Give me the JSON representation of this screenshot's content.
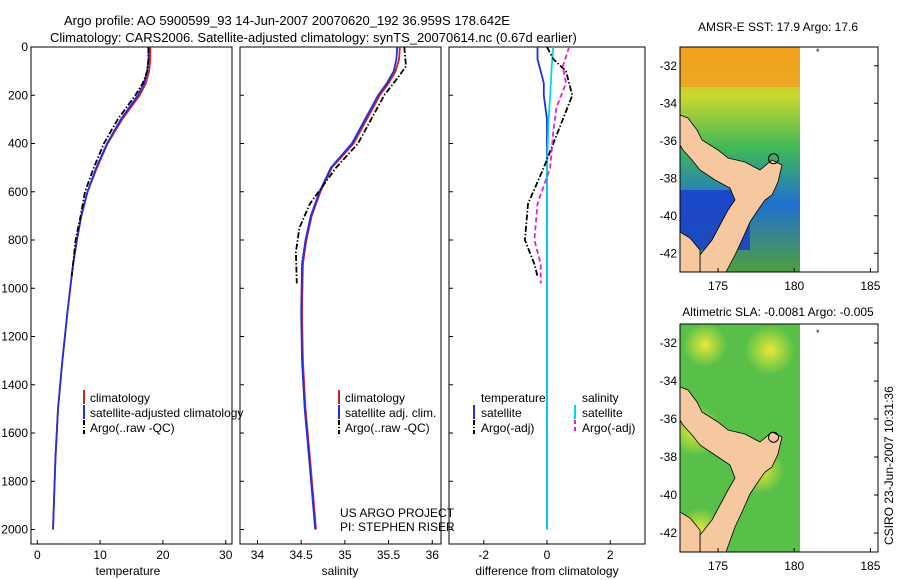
{
  "title_line1": "Argo profile: AO 5900599_93 14-Jun-2007 20070620_192 36.959S 178.642E",
  "title_line2": "Climatology: CARS2006. Satellite-adjusted climatology: synTS_20070614.nc (0.67d earlier)",
  "side_stamp": "CSIRO 23-Jun-2007 10:31:36",
  "colors": {
    "climatology": "#d02020",
    "satellite": "#2030e0",
    "argo": "#000000",
    "sal_satellite": "#00d8e8",
    "sal_argo": "#e020d0",
    "land": "#f5c8a0"
  },
  "chart_data": [
    {
      "type": "line",
      "xlabel": "temperature",
      "xlim": [
        -1,
        31
      ],
      "ylim": [
        2060,
        0
      ],
      "xticks": [
        0,
        10,
        20,
        30
      ],
      "yticks": [
        0,
        200,
        400,
        600,
        800,
        1000,
        1200,
        1400,
        1600,
        1800,
        2000
      ],
      "legend": [
        "climatology",
        "satellite-adjusted climatology",
        "Argo(..raw -QC)"
      ],
      "series": [
        {
          "name": "climatology",
          "color": "#d02020",
          "style": "solid",
          "x": [
            18,
            18,
            17.8,
            17.3,
            16.3,
            13.5,
            11.2,
            9.5,
            8,
            7,
            6.3,
            5.7,
            4.8,
            4,
            3.3,
            2.9,
            2.5
          ],
          "y": [
            0,
            50,
            100,
            150,
            200,
            300,
            400,
            500,
            600,
            700,
            800,
            900,
            1100,
            1300,
            1500,
            1700,
            2000
          ]
        },
        {
          "name": "satellite-adjusted climatology",
          "color": "#2030e0",
          "style": "solid",
          "x": [
            17.7,
            17.7,
            17.5,
            17,
            16,
            13.3,
            11.1,
            9.4,
            8,
            7,
            6.3,
            5.7,
            4.8,
            4,
            3.3,
            2.9,
            2.5
          ],
          "y": [
            0,
            50,
            100,
            150,
            200,
            300,
            400,
            500,
            600,
            700,
            800,
            900,
            1100,
            1300,
            1500,
            1700,
            2000
          ]
        },
        {
          "name": "Argo(..raw -QC)",
          "color": "#000000",
          "style": "dashdot",
          "x": [
            17.7,
            17.7,
            17.5,
            16.8,
            15.6,
            12.8,
            10.6,
            9,
            7.6,
            6.9,
            6.1,
            5.5
          ],
          "y": [
            0,
            50,
            100,
            150,
            200,
            300,
            400,
            500,
            600,
            700,
            800,
            950
          ]
        }
      ]
    },
    {
      "type": "line",
      "xlabel": "salinity",
      "xlim": [
        33.8,
        36.1
      ],
      "ylim": [
        2060,
        0
      ],
      "xticks": [
        34,
        34.5,
        35,
        35.5,
        36
      ],
      "legend": [
        "climatology",
        "satellite adj. clim.",
        "Argo(..raw -QC)"
      ],
      "annotation": [
        "US ARGO PROJECT",
        "PI: STEPHEN RISER"
      ],
      "series": [
        {
          "name": "climatology",
          "color": "#d02020",
          "style": "solid",
          "x": [
            35.63,
            35.62,
            35.58,
            35.5,
            35.4,
            35.25,
            35.1,
            34.85,
            34.72,
            34.62,
            34.56,
            34.52,
            34.51,
            34.52,
            34.55,
            34.6,
            34.67
          ],
          "y": [
            0,
            50,
            100,
            150,
            200,
            300,
            400,
            500,
            600,
            700,
            800,
            900,
            1100,
            1300,
            1500,
            1700,
            2000
          ]
        },
        {
          "name": "satellite adj. clim.",
          "color": "#2030e0",
          "style": "solid",
          "x": [
            35.6,
            35.59,
            35.56,
            35.48,
            35.38,
            35.23,
            35.08,
            34.84,
            34.71,
            34.61,
            34.55,
            34.51,
            34.5,
            34.51,
            34.54,
            34.59,
            34.66
          ],
          "y": [
            0,
            50,
            100,
            150,
            200,
            300,
            400,
            500,
            600,
            700,
            800,
            900,
            1100,
            1300,
            1500,
            1700,
            2000
          ]
        },
        {
          "name": "Argo(..raw -QC)",
          "color": "#000000",
          "style": "dashdot",
          "x": [
            35.68,
            35.7,
            35.6,
            35.45,
            35.3,
            35.15,
            34.9,
            34.6,
            34.48,
            34.44,
            34.45
          ],
          "y": [
            0,
            80,
            130,
            200,
            300,
            400,
            500,
            650,
            750,
            850,
            980
          ]
        }
      ]
    },
    {
      "type": "line",
      "xlabel": "difference from climatology",
      "xlim": [
        -3.1,
        3.1
      ],
      "ylim": [
        2060,
        0
      ],
      "xticks": [
        -2,
        0,
        2
      ],
      "legend": [
        "temperature",
        "satellite",
        "Argo(-adj)",
        "salinity",
        "satellite",
        "Argo(-adj)"
      ],
      "series": [
        {
          "name": "temperature satellite",
          "color": "#2030e0",
          "style": "solid",
          "x": [
            -0.3,
            -0.3,
            -0.2,
            -0.1,
            -0.1,
            0,
            0,
            0
          ],
          "y": [
            0,
            50,
            100,
            150,
            200,
            300,
            500,
            2000
          ]
        },
        {
          "name": "salinity satellite",
          "color": "#00d8e8",
          "style": "solid",
          "x": [
            0.2,
            0.15,
            0.1,
            0.05,
            0,
            0,
            0
          ],
          "y": [
            0,
            80,
            200,
            300,
            500,
            1000,
            2000
          ]
        },
        {
          "name": "temperature Argo(-adj)",
          "color": "#000000",
          "style": "dashdot",
          "x": [
            0,
            0.2,
            0.6,
            0.7,
            0.8,
            0.5,
            -0.1,
            -0.6,
            -0.7,
            -0.4,
            -0.3
          ],
          "y": [
            0,
            50,
            100,
            150,
            200,
            300,
            500,
            650,
            800,
            900,
            950
          ]
        },
        {
          "name": "salinity Argo(-adj)",
          "color": "#e020d0",
          "style": "dash",
          "x": [
            0.7,
            0.5,
            0.6,
            0.3,
            0.2,
            0.1,
            -0.3,
            -0.4,
            -0.2,
            -0.2
          ],
          "y": [
            0,
            80,
            150,
            250,
            350,
            500,
            650,
            800,
            900,
            980
          ]
        }
      ]
    },
    {
      "type": "heatmap",
      "title": "AMSR-E SST: 17.9  Argo: 17.6",
      "xticks": [
        175,
        180,
        185
      ],
      "xlim": [
        172.5,
        185.5
      ],
      "yticks": [
        -32,
        -34,
        -36,
        -38,
        -40,
        -42
      ],
      "ylim": [
        -43,
        -31
      ],
      "argo_position": {
        "lon": 178.642,
        "lat": -36.959
      }
    },
    {
      "type": "heatmap",
      "title": "Altimetric SLA: -0.0081  Argo: -0.005",
      "xticks": [
        175,
        180,
        185
      ],
      "xlim": [
        172.5,
        185.5
      ],
      "yticks": [
        -32,
        -34,
        -36,
        -38,
        -40,
        -42
      ],
      "ylim": [
        -43,
        -31
      ],
      "argo_position": {
        "lon": 178.642,
        "lat": -36.959
      }
    }
  ]
}
